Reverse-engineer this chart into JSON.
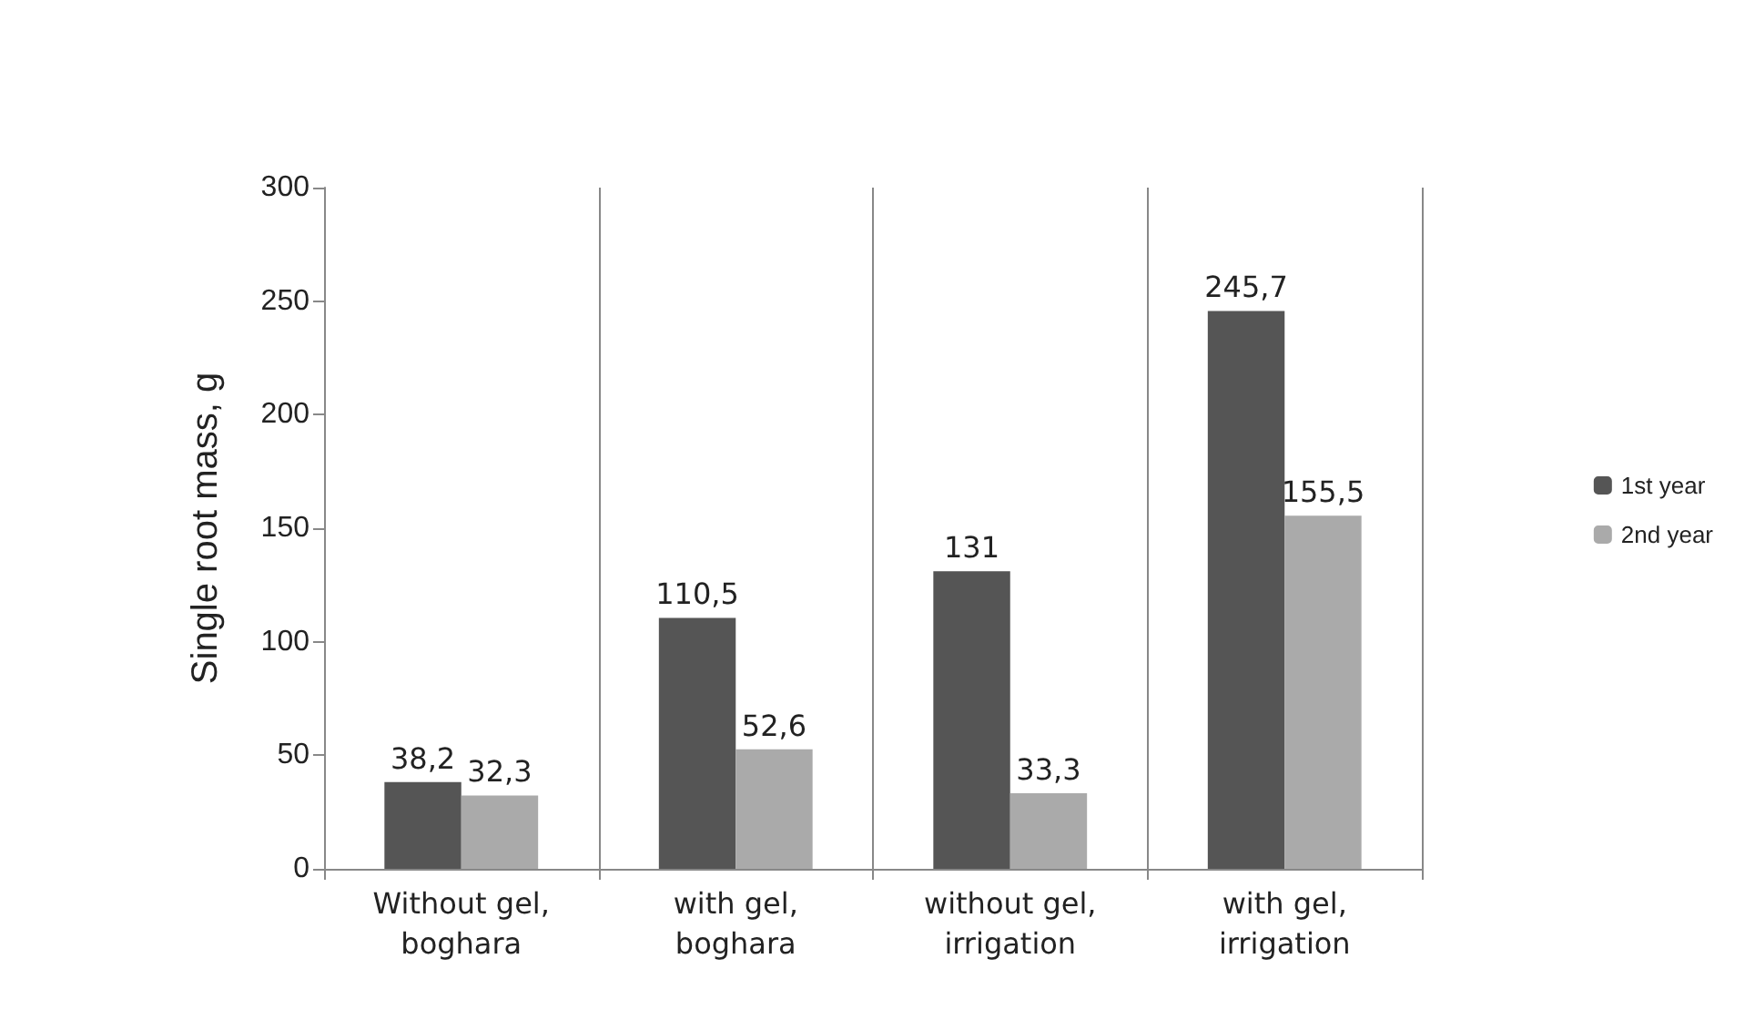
{
  "chart_data": {
    "type": "bar",
    "ylabel": "Single root mass, g",
    "categories": [
      "Without gel,\nboghara",
      "with gel,\nboghara",
      "without gel,\nirrigation",
      "with gel,\nirrigation"
    ],
    "series": [
      {
        "name": "1st year",
        "color": "#555555",
        "values": [
          38.2,
          110.5,
          131,
          245.7
        ],
        "value_labels": [
          "38,2",
          "110,5",
          "131",
          "245,7"
        ]
      },
      {
        "name": "2nd year",
        "color": "#aaaaaa",
        "values": [
          32.3,
          52.6,
          33.3,
          155.5
        ],
        "value_labels": [
          "32,3",
          "52,6",
          "33,3",
          "155,5"
        ]
      }
    ],
    "ylim": [
      0,
      300
    ],
    "yticks": [
      0,
      50,
      100,
      150,
      200,
      250,
      300
    ],
    "grid": "x",
    "legend": "right"
  }
}
